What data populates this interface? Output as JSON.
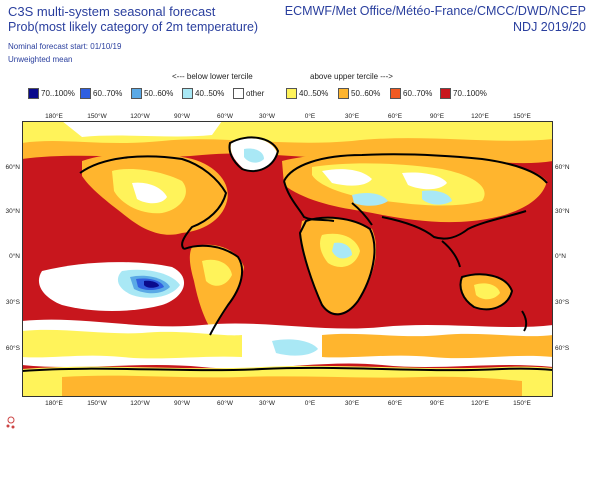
{
  "header": {
    "title": "C3S multi-system seasonal forecast",
    "subtitle": "Prob(most likely category of 2m temperature)",
    "nominal_start": "Nominal forecast start: 01/10/19",
    "weighting": "Unweighted mean",
    "centres": "ECMWF/Met Office/Météo-France/CMCC/DWD/NCEP",
    "period": "NDJ 2019/20"
  },
  "legend": {
    "below_label": "<--- below lower tercile",
    "above_label": "above upper tercile --->",
    "items": [
      {
        "label": "70..100%",
        "color": "#0a0a8c"
      },
      {
        "label": "60..70%",
        "color": "#2f5fe0"
      },
      {
        "label": "50..60%",
        "color": "#5aa9e6"
      },
      {
        "label": "40..50%",
        "color": "#a9e8f5"
      },
      {
        "label": "other",
        "color": "#ffffff"
      },
      {
        "label": "40..50%",
        "color": "#fff35a"
      },
      {
        "label": "50..60%",
        "color": "#ffb52e"
      },
      {
        "label": "60..70%",
        "color": "#f05a22"
      },
      {
        "label": "70..100%",
        "color": "#c8161d"
      }
    ]
  },
  "map": {
    "lon_labels": [
      "180°E",
      "150°W",
      "120°W",
      "90°W",
      "60°W",
      "30°W",
      "0°E",
      "30°E",
      "60°E",
      "90°E",
      "120°E",
      "150°E"
    ],
    "lat_labels": [
      "60°N",
      "30°N",
      "0°N",
      "30°S",
      "60°S"
    ],
    "colors": {
      "ocean_warm": "#c8161d",
      "mid": "#f05a22",
      "orange": "#ffb52e",
      "yellow": "#fff35a",
      "white": "#ffffff",
      "light_blue": "#a9e8f5",
      "mid_blue": "#5aa9e6",
      "blue": "#2f5fe0",
      "dark_blue": "#0a0a8c",
      "coast": "#000000"
    }
  }
}
